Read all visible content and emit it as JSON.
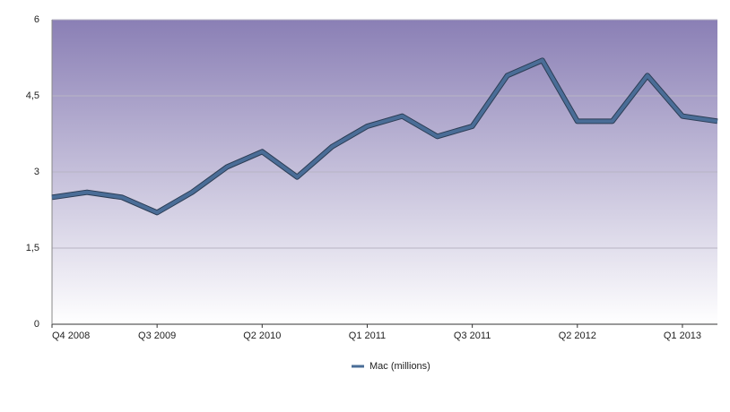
{
  "chart_data": {
    "type": "line",
    "categories": [
      "Q4 2008",
      null,
      null,
      "Q3 2009",
      null,
      null,
      "Q2 2010",
      null,
      null,
      "Q1 2011",
      null,
      null,
      "Q3 2011",
      null,
      null,
      "Q2 2012",
      null,
      null,
      "Q1 2013",
      null
    ],
    "series": [
      {
        "name": "Mac (millions)",
        "color": "#4a6d97",
        "values": [
          2.5,
          2.6,
          2.5,
          2.2,
          2.6,
          3.1,
          3.4,
          2.9,
          3.5,
          3.9,
          4.1,
          3.7,
          3.9,
          4.9,
          5.2,
          4.0,
          4.0,
          4.9,
          4.1,
          4.0
        ]
      }
    ],
    "ylim": [
      0,
      6
    ],
    "yticks": [
      0,
      {
        "value": 1.5,
        "label": "1,5"
      },
      3,
      {
        "value": 4.5,
        "label": "4,5"
      },
      6
    ],
    "grid": true,
    "legend": "bottom"
  }
}
